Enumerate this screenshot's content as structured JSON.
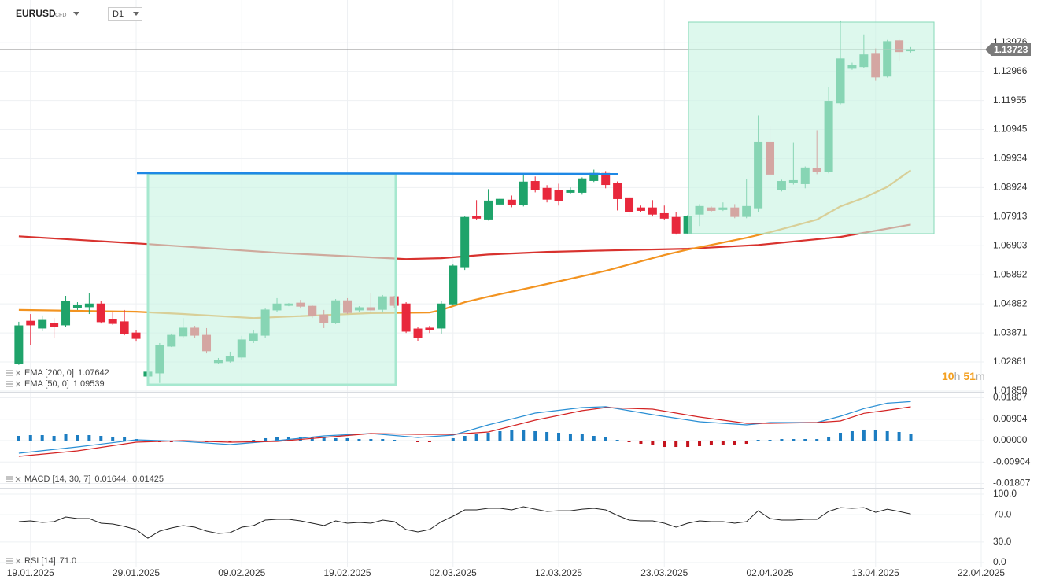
{
  "header": {
    "symbol": "EURUSD",
    "market": "CFD",
    "timeframe": "D1"
  },
  "countdown": {
    "hours": 10,
    "hours_unit": "h",
    "minutes": 51,
    "minutes_unit": "m"
  },
  "chart_data": [
    {
      "type": "candlestick",
      "open": [
        1.0281,
        1.0428,
        1.0404,
        1.042,
        1.0415,
        1.0475,
        1.0478,
        1.0488,
        1.0434,
        1.0426,
        1.0387,
        1.0237,
        1.0248,
        1.0341,
        1.0377,
        1.0404,
        1.0379,
        1.0284,
        1.0289,
        1.0303,
        1.036,
        1.0379,
        1.0467,
        1.0483,
        1.0491,
        1.048,
        1.045,
        1.0423,
        1.0499,
        1.0467,
        1.0475,
        1.0469,
        1.0513,
        1.0488,
        1.0401,
        1.0404,
        1.0404,
        1.0488,
        1.0617,
        1.0792,
        1.0783,
        1.0835,
        1.0849,
        1.0832,
        1.0914,
        1.089,
        1.0882,
        1.0876,
        1.0876,
        1.0917,
        1.0942,
        1.0906,
        1.0857,
        1.0822,
        1.0822,
        1.0802,
        1.0789,
        1.0734,
        1.08,
        1.0822,
        1.0816,
        1.0822,
        1.0792,
        1.0822,
        1.1051,
        1.0884,
        1.0909,
        1.0906,
        1.0958,
        1.0947,
        1.1187,
        1.1307,
        1.1313,
        1.1359,
        1.128,
        1.1403,
        1.1368
      ],
      "high": [
        1.0426,
        1.0453,
        1.0448,
        1.0439,
        1.0516,
        1.0494,
        1.0527,
        1.0499,
        1.0461,
        1.0467,
        1.0398,
        1.0256,
        1.0352,
        1.0385,
        1.0439,
        1.0412,
        1.0404,
        1.03,
        1.0322,
        1.0377,
        1.0398,
        1.0472,
        1.0508,
        1.0491,
        1.0502,
        1.0486,
        1.0467,
        1.0505,
        1.0508,
        1.048,
        1.0527,
        1.0519,
        1.0516,
        1.0494,
        1.0409,
        1.0412,
        1.0497,
        1.0625,
        1.0794,
        1.0849,
        1.0887,
        1.0857,
        1.0865,
        1.0939,
        1.0931,
        1.0901,
        1.0906,
        1.0893,
        1.0928,
        1.0955,
        1.095,
        1.0914,
        1.0865,
        1.083,
        1.0849,
        1.083,
        1.0808,
        1.0797,
        1.0835,
        1.0827,
        1.0841,
        1.0835,
        1.0923,
        1.1144,
        1.1108,
        1.092,
        1.1048,
        1.0966,
        1.1092,
        1.1242,
        1.1471,
        1.1327,
        1.1425,
        1.1376,
        1.1406,
        1.1408,
        1.1381
      ],
      "low": [
        1.0276,
        1.0344,
        1.0393,
        1.0371,
        1.0409,
        1.0467,
        1.0453,
        1.042,
        1.0415,
        1.0379,
        1.0357,
        1.0229,
        1.0213,
        1.0338,
        1.0371,
        1.0371,
        1.0316,
        1.0278,
        1.0284,
        1.0295,
        1.0352,
        1.0371,
        1.0461,
        1.048,
        1.0472,
        1.0439,
        1.0404,
        1.0418,
        1.0453,
        1.0461,
        1.0456,
        1.0458,
        1.0475,
        1.0387,
        1.036,
        1.0387,
        1.0385,
        1.0483,
        1.0606,
        1.0781,
        1.0778,
        1.083,
        1.0824,
        1.0827,
        1.0876,
        1.0841,
        1.083,
        1.0871,
        1.0868,
        1.0912,
        1.089,
        1.0813,
        1.0794,
        1.0808,
        1.0792,
        1.0781,
        1.0729,
        1.0731,
        1.0759,
        1.0808,
        1.0811,
        1.0786,
        1.0786,
        1.0808,
        1.0917,
        1.0879,
        1.0903,
        1.089,
        1.0939,
        1.0942,
        1.1182,
        1.1302,
        1.1307,
        1.1264,
        1.1275,
        1.1332,
        1.1362
      ],
      "close": [
        1.0412,
        1.0415,
        1.0431,
        1.0409,
        1.0497,
        1.0483,
        1.0488,
        1.0426,
        1.042,
        1.0385,
        1.0368,
        1.0251,
        1.0344,
        1.0379,
        1.0404,
        1.0379,
        1.0325,
        1.0292,
        1.0306,
        1.0363,
        1.0385,
        1.0467,
        1.0488,
        1.0488,
        1.048,
        1.0448,
        1.0423,
        1.0499,
        1.0458,
        1.0475,
        1.0467,
        1.0513,
        1.0483,
        1.0393,
        1.0371,
        1.0398,
        1.0488,
        1.062,
        1.0789,
        1.0786,
        1.0846,
        1.0852,
        1.0832,
        1.0912,
        1.0884,
        1.0852,
        1.0846,
        1.0884,
        1.0923,
        1.0942,
        1.0903,
        1.0854,
        1.0808,
        1.0813,
        1.08,
        1.0786,
        1.0734,
        1.0792,
        1.0827,
        1.0813,
        1.0822,
        1.0792,
        1.0827,
        1.1051,
        1.0939,
        1.0914,
        1.0917,
        1.0961,
        1.0947,
        1.1193,
        1.134,
        1.1318,
        1.1354,
        1.1277,
        1.14,
        1.1365,
        1.1373
      ],
      "up_color": "#1fa36a",
      "down_color": "#e8283c",
      "ylim": [
        1.0185,
        1.1531
      ],
      "yticks": [
        {
          "value": 1.0185,
          "label": "1.01850"
        },
        1.02861,
        1.03871,
        1.04882,
        1.05892,
        1.06903,
        1.07913,
        1.08924,
        1.09934,
        1.10945,
        1.11955,
        1.12966,
        1.13976
      ],
      "xlim": [
        -1.6,
        82.2
      ],
      "xticks": [
        {
          "value": 1,
          "label": "19.01.2025"
        },
        {
          "value": 10,
          "label": "29.01.2025"
        },
        {
          "value": 19,
          "label": "09.02.2025"
        },
        {
          "value": 28,
          "label": "19.02.2025"
        },
        {
          "value": 37,
          "label": "02.03.2025"
        },
        {
          "value": 46,
          "label": "12.03.2025"
        },
        {
          "value": 55,
          "label": "23.03.2025"
        },
        {
          "value": 64,
          "label": "02.04.2025"
        },
        {
          "value": 73,
          "label": "13.04.2025"
        },
        {
          "value": 82,
          "label": "22.04.2025"
        }
      ],
      "grid": true,
      "last_price": 1.13723,
      "series": [
        {
          "name": "EMA [200, 0]",
          "color": "#d8322e",
          "legend_value": 1.07642,
          "x": [
            0,
            11,
            22,
            33,
            36,
            40,
            45,
            50,
            57,
            63,
            70,
            76
          ],
          "values": [
            1.0723,
            1.0696,
            1.0666,
            1.0644,
            1.0647,
            1.066,
            1.0669,
            1.0674,
            1.068,
            1.0693,
            1.0721,
            1.0764
          ]
        },
        {
          "name": "EMA [50, 0]",
          "color": "#f29320",
          "legend_value": 1.09539,
          "x": [
            0,
            10,
            14,
            20,
            30,
            35,
            36,
            38,
            40,
            45,
            50,
            55,
            57,
            62,
            64,
            66,
            68,
            70,
            72,
            74,
            76
          ],
          "values": [
            1.0467,
            1.0461,
            1.0453,
            1.0439,
            1.0456,
            1.0458,
            1.0467,
            1.0494,
            1.0513,
            1.0557,
            1.0603,
            1.0658,
            1.0677,
            1.0718,
            1.0737,
            1.0759,
            1.0781,
            1.0827,
            1.0857,
            1.0895,
            1.0953
          ]
        }
      ]
    },
    {
      "type": "macd",
      "histogram": [
        0.00199,
        0.00232,
        0.00232,
        0.00199,
        0.00266,
        0.00232,
        0.00232,
        0.00199,
        0.00166,
        0.00133,
        0.00066,
        -0.00033,
        -0.00066,
        -0.00066,
        -0.00033,
        -0.00033,
        -0.00066,
        -0.00066,
        -0.00066,
        -0.00033,
        0.00033,
        0.001,
        0.00133,
        0.00166,
        0.00166,
        0.00133,
        0.00133,
        0.001,
        0.001,
        0.00066,
        0.00066,
        0.00066,
        0.00033,
        -0.00033,
        -0.00066,
        -0.00066,
        -0.00033,
        0.001,
        0.00199,
        0.00266,
        0.00332,
        0.00398,
        0.00432,
        0.00465,
        0.00398,
        0.00365,
        0.00332,
        0.00299,
        0.00266,
        0.00199,
        0.00133,
        0.00033,
        -0.00066,
        -0.00133,
        -0.00199,
        -0.00266,
        -0.00266,
        -0.00266,
        -0.00232,
        -0.00199,
        -0.00199,
        -0.00166,
        -0.00133,
        0.00033,
        0.00033,
        0.00066,
        0.00066,
        0.00066,
        0.00066,
        0.00166,
        0.00332,
        0.00398,
        0.00465,
        0.00432,
        0.00398,
        0.00365,
        0.00266
      ],
      "up_color": "#1c7dc2",
      "down_color": "#c4121c",
      "series": [
        {
          "color": "#2a8fd4",
          "x": [
            0,
            5,
            10,
            14,
            18,
            22,
            26,
            30,
            34,
            37,
            40,
            44,
            48,
            50,
            54,
            58,
            62,
            64,
            68,
            70,
            72,
            74,
            76
          ],
          "values": [
            -0.00531,
            -0.00266,
            0.00033,
            -0.00033,
            -0.00166,
            0,
            0.00199,
            0.00299,
            0.00133,
            0.00232,
            0.00664,
            0.01162,
            0.01394,
            0.01428,
            0.01096,
            0.00797,
            0.00664,
            0.00764,
            0.00764,
            0.01029,
            0.0135,
            0.0158,
            0.01644
          ]
        },
        {
          "color": "#d32424",
          "x": [
            0,
            5,
            10,
            14,
            18,
            22,
            26,
            30,
            34,
            37,
            40,
            44,
            48,
            50,
            54,
            58,
            62,
            64,
            68,
            70,
            72,
            74,
            76
          ],
          "values": [
            -0.00664,
            -0.00432,
            -0.00066,
            0,
            -0.00066,
            -0.00033,
            0.00133,
            0.00299,
            0.00266,
            0.00266,
            0.00365,
            0.00863,
            0.01262,
            0.01394,
            0.01328,
            0.00996,
            0.0073,
            0.0073,
            0.00764,
            0.0083,
            0.0115,
            0.0128,
            0.01425
          ]
        }
      ],
      "legend": {
        "name": "MACD [14, 30, 7]",
        "values": [
          {
            "value": 0.01644,
            "label": "0.01644,"
          },
          0.01425
        ]
      },
      "ylim": [
        -0.0199,
        0.0199
      ],
      "yticks": [
        0.01807,
        0.00904,
        {
          "value": 0,
          "label": "0.00000"
        },
        -0.00904,
        -0.01807
      ],
      "grid": true
    },
    {
      "type": "rsi",
      "values": [
        59.8,
        60.9,
        58.6,
        59.8,
        66.7,
        64.4,
        64.4,
        57.5,
        56.3,
        52.9,
        48.3,
        35.6,
        46.0,
        50.6,
        54.0,
        51.7,
        46.0,
        42.5,
        43.7,
        51.7,
        54.0,
        62.1,
        63.2,
        63.2,
        60.9,
        57.5,
        54.0,
        60.9,
        57.5,
        58.6,
        57.5,
        62.1,
        59.8,
        48.3,
        44.8,
        48.3,
        59.8,
        67.8,
        77.0,
        77.0,
        79.3,
        79.3,
        77.0,
        81.6,
        78.1,
        74.7,
        75.8,
        75.8,
        78.1,
        79.3,
        77.0,
        69.0,
        62.1,
        60.9,
        60.9,
        57.5,
        51.7,
        57.5,
        60.9,
        59.8,
        59.8,
        57.5,
        59.8,
        75.8,
        64.4,
        62.1,
        62.1,
        63.2,
        63.2,
        74.7,
        80.4,
        79.3,
        80.4,
        73.5,
        78.1,
        74.7,
        71.0
      ],
      "color": "#222222",
      "legend": {
        "name": "RSI [14]",
        "value": {
          "value": 71,
          "label": "71.0"
        }
      },
      "ylim": [
        -5.7,
        106.9
      ],
      "yticks": [
        {
          "value": 100,
          "label": "100.0"
        },
        {
          "value": 70,
          "label": "70.0"
        },
        {
          "value": 30,
          "label": "30.0"
        },
        {
          "value": 0,
          "label": "0.0"
        }
      ],
      "grid": true
    }
  ]
}
